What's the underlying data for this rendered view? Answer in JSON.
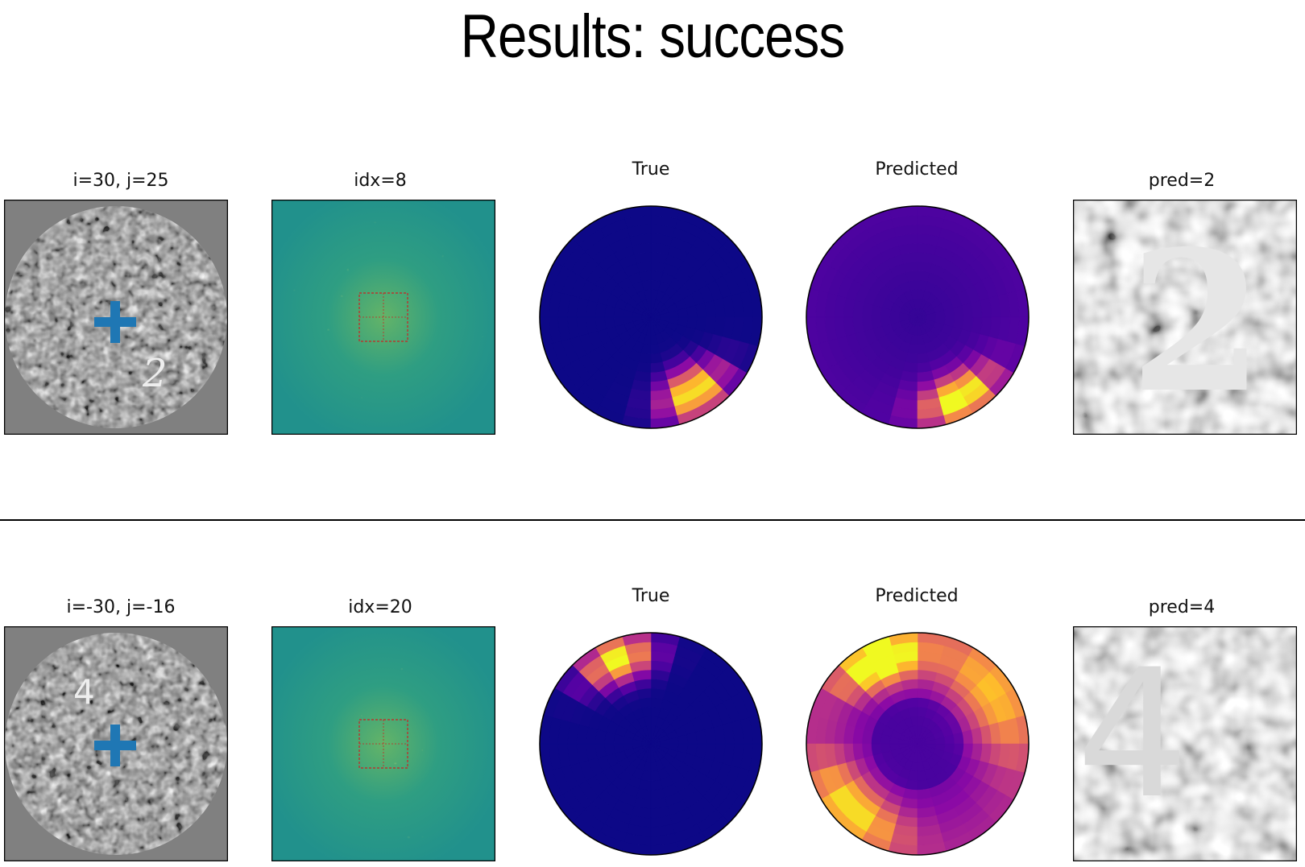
{
  "title": "Results: success",
  "rows": [
    {
      "input_title": "i=30, j=25",
      "input_digit": "2",
      "filter_title": "idx=8",
      "true_title": "True",
      "pred_title": "Predicted",
      "crop_title": "pred=2",
      "crop_digit": "2"
    },
    {
      "input_title": "i=-30, j=-16",
      "input_digit": "4",
      "filter_title": "idx=20",
      "true_title": "True",
      "pred_title": "Predicted",
      "crop_title": "pred=4",
      "crop_digit": "4"
    }
  ],
  "colors": {
    "marker": "#1f77b4",
    "axes_frame": "#000000",
    "polar_background": "#0d0887",
    "polar_hot": "#f0f921",
    "polar_mid": "#cc4778",
    "polar_low": "#7e03a8",
    "filter_background": "#21918c",
    "input_background": "#808080",
    "roi_box": "#cc2222"
  }
}
